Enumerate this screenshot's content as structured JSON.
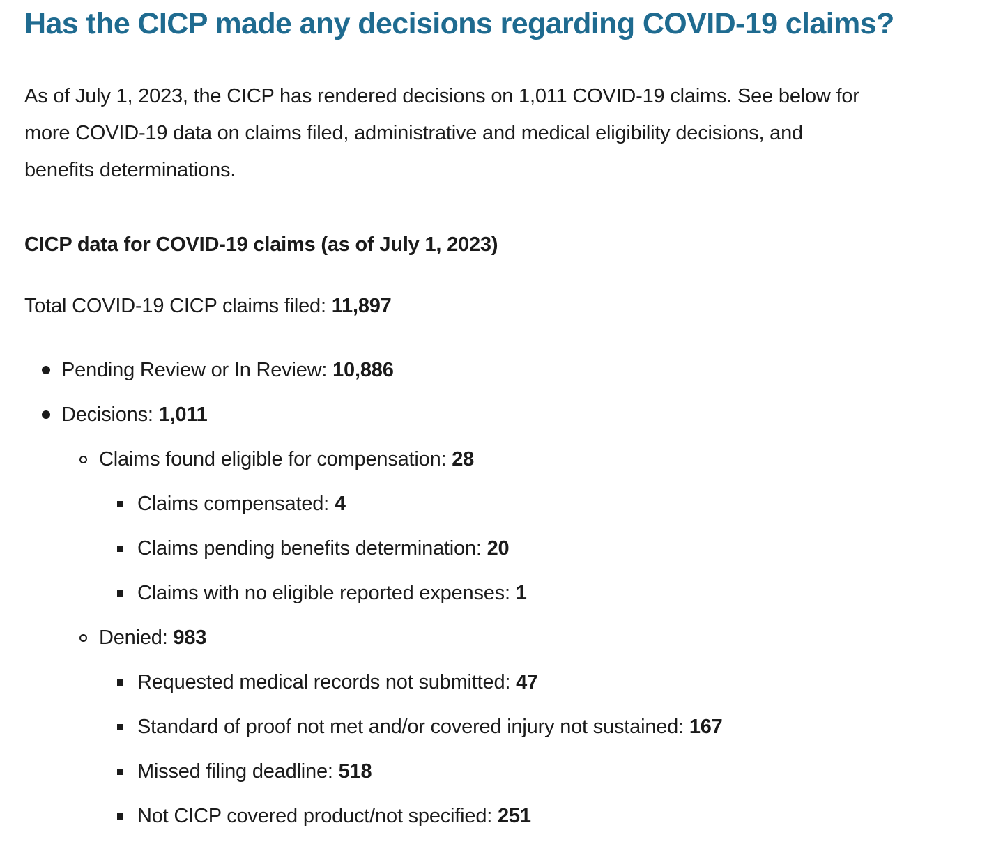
{
  "page": {
    "title": "Has the CICP made any decisions regarding COVID-19 claims?",
    "colors": {
      "heading": "#1f6b90",
      "body_text": "#1b1b1b",
      "background": "#ffffff"
    },
    "intro_lines": [
      "As of July 1, 2023, the CICP has rendered decisions on 1,011 COVID-19 claims. See below for",
      "more COVID-19 data on claims filed, administrative and medical eligibility decisions, and",
      "benefits determinations."
    ],
    "subheading": "CICP data for COVID-19 claims (as of July 1, 2023)",
    "total": {
      "label": "Total COVID-19 CICP claims filed: ",
      "value": "11,897"
    },
    "claims_list": [
      {
        "label": "Pending Review or In Review: ",
        "value": "10,886",
        "children": []
      },
      {
        "label": "Decisions: ",
        "value": "1,011",
        "children": [
          {
            "label": "Claims found eligible for compensation: ",
            "value": "28",
            "children": [
              {
                "label": "Claims compensated: ",
                "value": "4"
              },
              {
                "label": "Claims pending benefits determination: ",
                "value": "20"
              },
              {
                "label": "Claims with no eligible reported expenses: ",
                "value": "1"
              }
            ]
          },
          {
            "label": "Denied: ",
            "value": "983",
            "children": [
              {
                "label": "Requested medical records not submitted: ",
                "value": "47"
              },
              {
                "label": "Standard of proof not met and/or covered injury not sustained: ",
                "value": "167"
              },
              {
                "label": "Missed filing deadline: ",
                "value": "518"
              },
              {
                "label": "Not CICP covered product/not specified: ",
                "value": "251"
              }
            ]
          }
        ]
      }
    ]
  }
}
